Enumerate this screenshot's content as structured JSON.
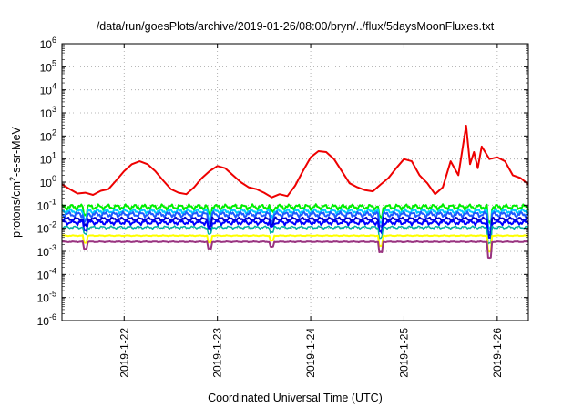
{
  "chart_data": {
    "type": "line",
    "title": "/data/run/goesPlots/archive/2019-01-26/08:00/bryn/../flux/5daysMoonFluxes.txt",
    "xlabel": "Coordinated Universal Time (UTC)",
    "ylabel_parts": [
      "protons/cm",
      "2",
      "-s-sr-MeV"
    ],
    "y_scale": "log",
    "ylim_exp": [
      -6,
      6
    ],
    "y_ticks": [
      {
        "exp": -6,
        "base": "10",
        "sup": "-6"
      },
      {
        "exp": -5,
        "base": "10",
        "sup": "-5"
      },
      {
        "exp": -4,
        "base": "10",
        "sup": "-4"
      },
      {
        "exp": -3,
        "base": "10",
        "sup": "-3"
      },
      {
        "exp": -2,
        "base": "10",
        "sup": "-2"
      },
      {
        "exp": -1,
        "base": "10",
        "sup": "-1"
      },
      {
        "exp": 0,
        "base": "10",
        "sup": "0"
      },
      {
        "exp": 1,
        "base": "10",
        "sup": "1"
      },
      {
        "exp": 2,
        "base": "10",
        "sup": "2"
      },
      {
        "exp": 3,
        "base": "10",
        "sup": "3"
      },
      {
        "exp": 4,
        "base": "10",
        "sup": "4"
      },
      {
        "exp": 5,
        "base": "10",
        "sup": "5"
      },
      {
        "exp": 6,
        "base": "10",
        "sup": "6"
      }
    ],
    "xlim": [
      "2019-01-21T08:00",
      "2019-01-26T08:00"
    ],
    "x_ticks": [
      {
        "label": "2019-1-22",
        "t": "2019-01-22T00:00"
      },
      {
        "label": "2019-1-23",
        "t": "2019-01-23T00:00"
      },
      {
        "label": "2019-1-24",
        "t": "2019-01-24T00:00"
      },
      {
        "label": "2019-1-25",
        "t": "2019-01-25T00:00"
      },
      {
        "label": "2019-1-26",
        "t": "2019-01-26T00:00"
      }
    ],
    "grid": true,
    "legend": "none",
    "series": [
      {
        "color": "#ee0000",
        "width": 2,
        "points": [
          [
            "2019-01-21T08:00",
            0.8
          ],
          [
            "2019-01-21T10:00",
            0.5
          ],
          [
            "2019-01-21T12:00",
            0.32
          ],
          [
            "2019-01-21T14:00",
            0.35
          ],
          [
            "2019-01-21T16:00",
            0.28
          ],
          [
            "2019-01-21T18:00",
            0.42
          ],
          [
            "2019-01-21T20:00",
            0.5
          ],
          [
            "2019-01-21T22:00",
            1.2
          ],
          [
            "2019-01-22T00:00",
            3
          ],
          [
            "2019-01-22T02:00",
            6
          ],
          [
            "2019-01-22T04:00",
            8
          ],
          [
            "2019-01-22T06:00",
            6
          ],
          [
            "2019-01-22T08:00",
            3
          ],
          [
            "2019-01-22T10:00",
            1.2
          ],
          [
            "2019-01-22T12:00",
            0.5
          ],
          [
            "2019-01-22T14:00",
            0.35
          ],
          [
            "2019-01-22T16:00",
            0.3
          ],
          [
            "2019-01-22T18:00",
            0.6
          ],
          [
            "2019-01-22T20:00",
            1.5
          ],
          [
            "2019-01-22T22:00",
            3
          ],
          [
            "2019-01-23T00:00",
            5
          ],
          [
            "2019-01-23T02:00",
            4
          ],
          [
            "2019-01-23T04:00",
            2
          ],
          [
            "2019-01-23T06:00",
            1
          ],
          [
            "2019-01-23T08:00",
            0.6
          ],
          [
            "2019-01-23T10:00",
            0.5
          ],
          [
            "2019-01-23T12:00",
            0.35
          ],
          [
            "2019-01-23T14:00",
            0.22
          ],
          [
            "2019-01-23T16:00",
            0.3
          ],
          [
            "2019-01-23T18:00",
            0.25
          ],
          [
            "2019-01-23T20:00",
            0.7
          ],
          [
            "2019-01-23T22:00",
            3
          ],
          [
            "2019-01-24T00:00",
            12
          ],
          [
            "2019-01-24T02:00",
            22
          ],
          [
            "2019-01-24T04:00",
            20
          ],
          [
            "2019-01-24T06:00",
            10
          ],
          [
            "2019-01-24T08:00",
            3
          ],
          [
            "2019-01-24T10:00",
            0.9
          ],
          [
            "2019-01-24T12:00",
            0.6
          ],
          [
            "2019-01-24T14:00",
            0.45
          ],
          [
            "2019-01-24T16:00",
            0.4
          ],
          [
            "2019-01-24T18:00",
            0.8
          ],
          [
            "2019-01-24T20:00",
            1.5
          ],
          [
            "2019-01-24T22:00",
            4
          ],
          [
            "2019-01-25T00:00",
            10
          ],
          [
            "2019-01-25T02:00",
            8
          ],
          [
            "2019-01-25T04:00",
            2
          ],
          [
            "2019-01-25T06:00",
            0.9
          ],
          [
            "2019-01-25T08:00",
            0.3
          ],
          [
            "2019-01-25T10:00",
            0.6
          ],
          [
            "2019-01-25T12:00",
            8
          ],
          [
            "2019-01-25T14:00",
            2
          ],
          [
            "2019-01-25T16:00",
            280
          ],
          [
            "2019-01-25T17:00",
            6
          ],
          [
            "2019-01-25T18:00",
            20
          ],
          [
            "2019-01-25T19:00",
            4
          ],
          [
            "2019-01-25T20:00",
            35
          ],
          [
            "2019-01-25T22:00",
            10
          ],
          [
            "2019-01-26T00:00",
            12
          ],
          [
            "2019-01-26T02:00",
            8
          ],
          [
            "2019-01-26T04:00",
            2
          ],
          [
            "2019-01-26T06:00",
            1.5
          ],
          [
            "2019-01-26T08:00",
            0.8
          ]
        ]
      },
      {
        "color": "#00ee00",
        "width": 2,
        "level": 0.085,
        "spread": 0.3,
        "phase": 1.1
      },
      {
        "color": "#00c8ff",
        "width": 2,
        "level": 0.055,
        "spread": 0.25,
        "phase": 2.0
      },
      {
        "color": "#1e5aff",
        "width": 2,
        "level": 0.04,
        "spread": 0.3,
        "phase": 3.1
      },
      {
        "color": "#0000cc",
        "width": 2,
        "level": 0.025,
        "spread": 0.2,
        "phase": 4.2
      },
      {
        "color": "#0000ff",
        "width": 2,
        "level": 0.018,
        "spread": 0.25,
        "phase": 0.5
      },
      {
        "color": "#00b0a0",
        "width": 1.5,
        "level": 0.011,
        "spread": 0.15,
        "phase": 5.0
      },
      {
        "color": "#ffff00",
        "width": 2,
        "level": 0.0048,
        "spread": 0.05,
        "phase": 0.0
      },
      {
        "color": "#993380",
        "width": 2,
        "level": 0.0026,
        "spread": 0.05,
        "phase": 0.0
      }
    ],
    "dips": [
      {
        "t": "2019-01-21T14:00",
        "factor": 0.5
      },
      {
        "t": "2019-01-22T22:00",
        "factor": 0.5
      },
      {
        "t": "2019-01-23T14:00",
        "factor": 0.6
      },
      {
        "t": "2019-01-24T18:00",
        "factor": 0.35
      },
      {
        "t": "2019-01-25T22:00",
        "factor": 0.2
      }
    ]
  }
}
